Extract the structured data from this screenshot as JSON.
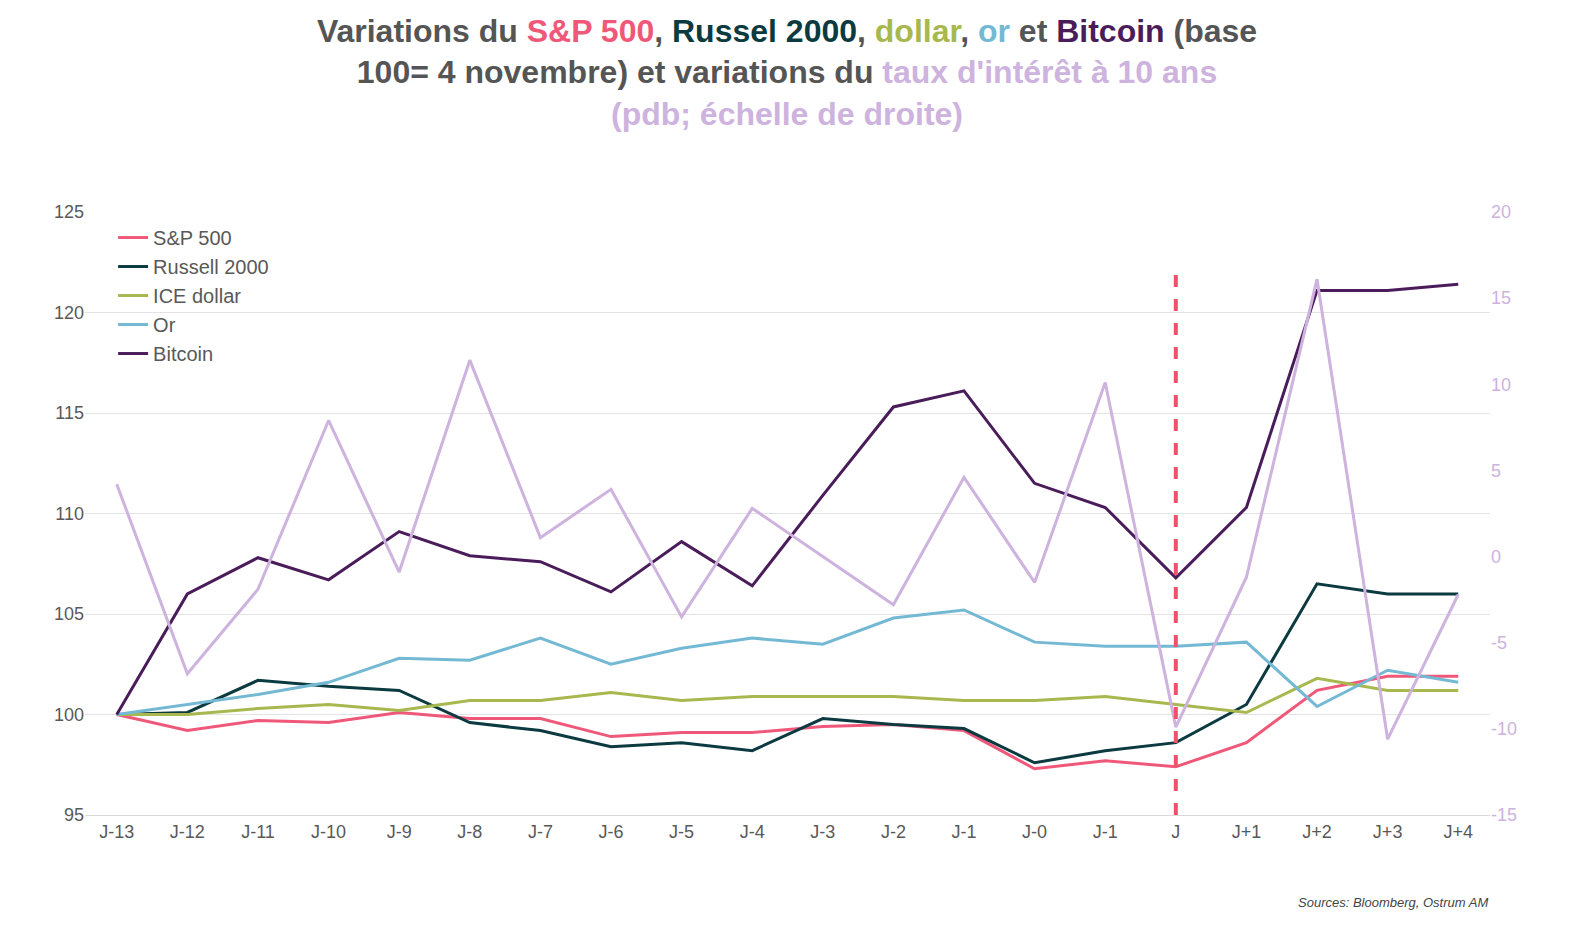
{
  "chart_data": {
    "type": "line",
    "title": [
      [
        {
          "text": "Variations du ",
          "color": "#555555"
        },
        {
          "text": "S&P 500",
          "color": "#f0587a"
        },
        {
          "text": ", ",
          "color": "#555555"
        },
        {
          "text": "Russel 2000",
          "color": "#0b3a40"
        },
        {
          "text": ", ",
          "color": "#555555"
        },
        {
          "text": "dollar",
          "color": "#a8b84e"
        },
        {
          "text": ", ",
          "color": "#555555"
        },
        {
          "text": "or",
          "color": "#74b9d4"
        },
        {
          "text": " et ",
          "color": "#555555"
        },
        {
          "text": "Bitcoin",
          "color": "#4a1d5a"
        },
        {
          "text": " (base",
          "color": "#555555"
        }
      ],
      [
        {
          "text": "100= 4 novembre) et variations du ",
          "color": "#555555"
        },
        {
          "text": "taux d'intérêt à 10 ans",
          "color": "#cdb3de"
        }
      ],
      [
        {
          "text": "(pdb; échelle de droite)",
          "color": "#cdb3de"
        }
      ]
    ],
    "categories": [
      "J-13",
      "J-12",
      "J-11",
      "J-10",
      "J-9",
      "J-8",
      "J-7",
      "J-6",
      "J-5",
      "J-4",
      "J-3",
      "J-2",
      "J-1",
      "J-0",
      "J-1",
      "J",
      "J+1",
      "J+2",
      "J+3",
      "J+4"
    ],
    "series": [
      {
        "name": "S&P 500",
        "color": "#f0587a",
        "values": [
          100,
          99.2,
          99.7,
          99.6,
          100.1,
          99.8,
          99.8,
          98.9,
          99.1,
          99.1,
          99.4,
          99.5,
          99.2,
          97.3,
          97.7,
          97.4,
          98.6,
          101.2,
          101.9,
          101.9
        ]
      },
      {
        "name": "Russell 2000",
        "color": "#0b3a40",
        "values": [
          100,
          100.1,
          101.7,
          101.4,
          101.2,
          99.6,
          99.2,
          98.4,
          98.6,
          98.2,
          99.8,
          99.5,
          99.3,
          97.6,
          98.2,
          98.6,
          100.5,
          106.5,
          106.0,
          106.0
        ]
      },
      {
        "name": "ICE dollar",
        "color": "#a8b84e",
        "values": [
          100,
          100.0,
          100.3,
          100.5,
          100.2,
          100.7,
          100.7,
          101.1,
          100.7,
          100.9,
          100.9,
          100.9,
          100.7,
          100.7,
          100.9,
          100.5,
          100.1,
          101.8,
          101.2,
          101.2
        ]
      },
      {
        "name": "Or",
        "color": "#74b9d4",
        "values": [
          100,
          100.5,
          101.0,
          101.6,
          102.8,
          102.7,
          103.8,
          102.5,
          103.3,
          103.8,
          103.5,
          104.8,
          105.2,
          103.6,
          103.4,
          103.4,
          103.6,
          100.4,
          102.2,
          101.6
        ]
      },
      {
        "name": "Bitcoin",
        "color": "#4a1d5a",
        "values": [
          100,
          106.0,
          107.8,
          106.7,
          109.1,
          107.9,
          107.6,
          106.1,
          108.6,
          106.4,
          110.9,
          115.3,
          116.1,
          111.5,
          110.3,
          106.8,
          110.3,
          121.1,
          121.1,
          121.4
        ]
      },
      {
        "color": "#cdb3de",
        "axis": "y2",
        "values": [
          4.2,
          -6.8,
          -1.9,
          7.9,
          -0.9,
          11.4,
          1.1,
          3.9,
          -3.5,
          2.8,
          0.0,
          -2.8,
          4.6,
          -1.5,
          10.1,
          -9.9,
          -1.2,
          16.1,
          -10.6,
          -2.2
        ]
      }
    ],
    "ylim": [
      95,
      125
    ],
    "yticks": [
      95,
      100,
      105,
      110,
      115,
      120,
      125
    ],
    "y2lim": [
      -15,
      20
    ],
    "y2ticks": [
      -15,
      -10,
      -5,
      0,
      5,
      10,
      15,
      20
    ],
    "grid": true,
    "legend": "upper left",
    "vline": {
      "x": "J",
      "y": [
        95,
        122
      ],
      "color": "#f4506a",
      "line_style": "dash"
    },
    "annotations": [
      {
        "text": "Sources: Bloomberg, Ostrum AM"
      }
    ]
  }
}
